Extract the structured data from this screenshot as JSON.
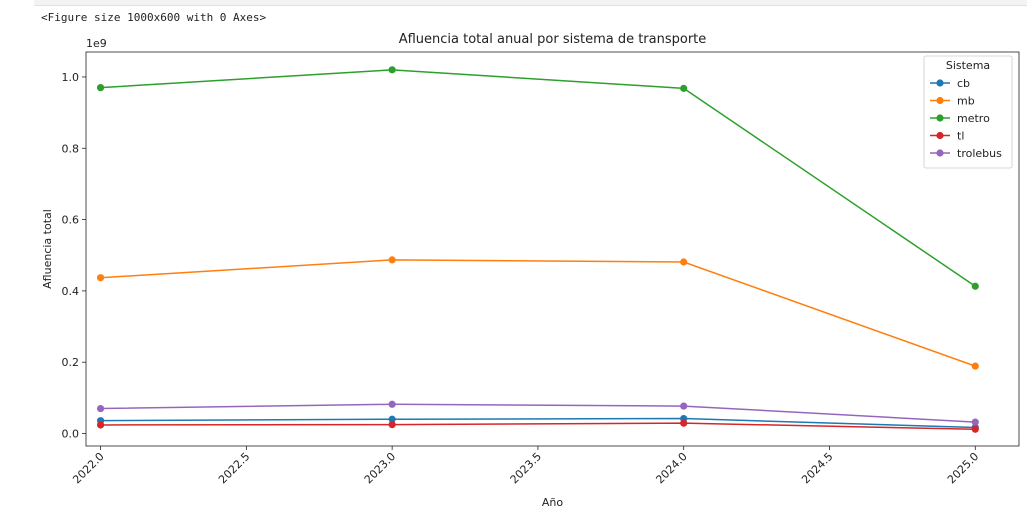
{
  "output_text": "<Figure size 1000x600 with 0 Axes>",
  "chart_data": {
    "type": "line",
    "title": "Afluencia total anual por sistema de transporte",
    "xlabel": "Año",
    "ylabel": "Afluencia total",
    "y_offset_text": "1e9",
    "xlim": [
      2021.95,
      2025.15
    ],
    "ylim": [
      -0.035,
      1.07
    ],
    "xticks": [
      2022.0,
      2022.5,
      2023.0,
      2023.5,
      2024.0,
      2024.5,
      2025.0
    ],
    "xtick_labels": [
      "2022.0",
      "2022.5",
      "2023.0",
      "2023.5",
      "2024.0",
      "2024.5",
      "2025.0"
    ],
    "yticks": [
      0.0,
      0.2,
      0.4,
      0.6,
      0.8,
      1.0
    ],
    "ytick_labels": [
      "0.0",
      "0.2",
      "0.4",
      "0.6",
      "0.8",
      "1.0"
    ],
    "legend_title": "Sistema",
    "legend_position": "upper right",
    "x": [
      2022,
      2023,
      2024,
      2025
    ],
    "series": [
      {
        "name": "cb",
        "color": "#1f77b4",
        "values": [
          0.036,
          0.04,
          0.042,
          0.017
        ]
      },
      {
        "name": "mb",
        "color": "#ff7f0e",
        "values": [
          0.437,
          0.487,
          0.481,
          0.189
        ]
      },
      {
        "name": "metro",
        "color": "#2ca02c",
        "values": [
          0.97,
          1.02,
          0.968,
          0.413
        ]
      },
      {
        "name": "tl",
        "color": "#d62728",
        "values": [
          0.024,
          0.025,
          0.029,
          0.012
        ]
      },
      {
        "name": "trolebus",
        "color": "#9467bd",
        "values": [
          0.07,
          0.082,
          0.077,
          0.032
        ]
      }
    ]
  }
}
